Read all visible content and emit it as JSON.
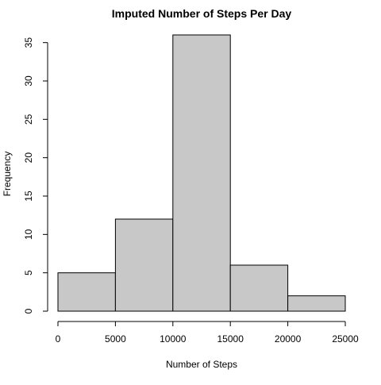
{
  "chart_data": {
    "type": "bar",
    "title": "Imputed Number of Steps Per Day",
    "xlabel": "Number of Steps",
    "ylabel": "Frequency",
    "bins": [
      {
        "from": 0,
        "to": 5000,
        "count": 5
      },
      {
        "from": 5000,
        "to": 10000,
        "count": 12
      },
      {
        "from": 10000,
        "to": 15000,
        "count": 36
      },
      {
        "from": 15000,
        "to": 20000,
        "count": 6
      },
      {
        "from": 20000,
        "to": 25000,
        "count": 2
      }
    ],
    "x_ticks": [
      "0",
      "5000",
      "10000",
      "15000",
      "20000",
      "25000"
    ],
    "y_ticks": [
      "0",
      "5",
      "10",
      "15",
      "20",
      "25",
      "30",
      "35"
    ],
    "xlim": [
      0,
      25000
    ],
    "ylim": [
      0,
      36
    ],
    "grid": false,
    "colors": {
      "bar_fill": "#c8c8c8",
      "bar_stroke": "#000000",
      "axis": "#000000"
    }
  }
}
